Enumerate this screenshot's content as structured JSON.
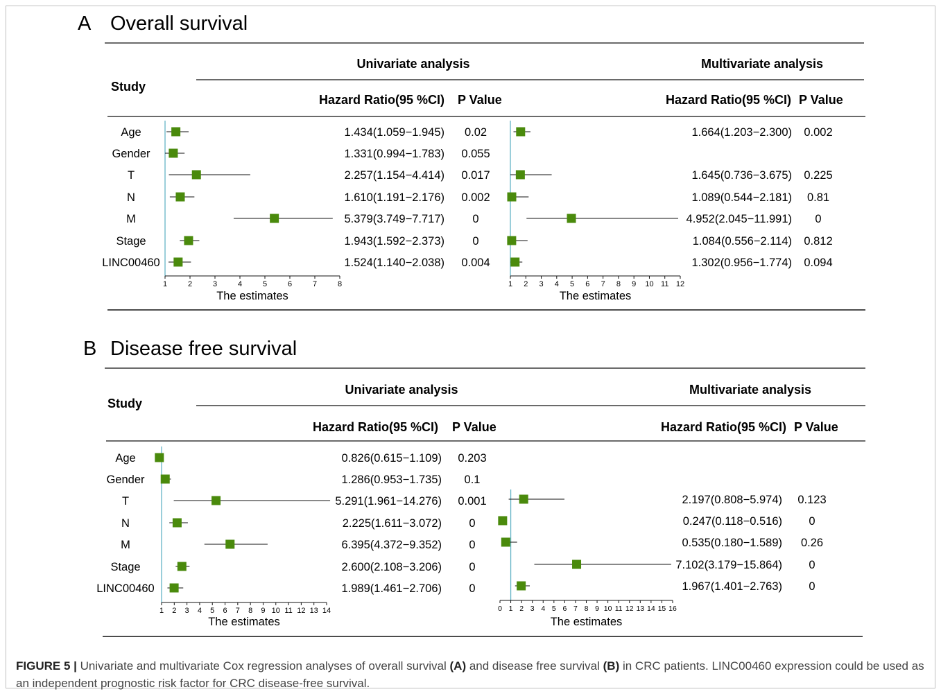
{
  "figure_caption": {
    "label": "FIGURE 5 |",
    "part1": " Univariate and multivariate Cox regression analyses of overall survival ",
    "ref_a": "(A)",
    "part2": " and disease free survival ",
    "ref_b": "(B)",
    "part3": " in CRC patients. LINC00460 expression could be used as an independent prognostic risk factor for CRC disease-free survival."
  },
  "colors": {
    "marker": "#4a8a0c",
    "reference_line": "#63b3c6",
    "text": "#111111"
  },
  "chart_data": [
    {
      "type": "forest",
      "panel_letter": "A",
      "title": "Overall survival",
      "study_header": "Study",
      "univariate": {
        "heading": "Univariate analysis",
        "hr_header": "Hazard Ratio(95 %CI)",
        "p_header": "P Value",
        "xlabel": "The estimates",
        "xlim": [
          1,
          8
        ],
        "ticks": [
          1,
          2,
          3,
          4,
          5,
          6,
          7,
          8
        ],
        "reference": 1,
        "rows": [
          {
            "label": "Age",
            "hr": 1.434,
            "lo": 1.059,
            "hi": 1.945,
            "text": "1.434(1.059−1.945)",
            "p": "0.02"
          },
          {
            "label": "Gender",
            "hr": 1.331,
            "lo": 0.994,
            "hi": 1.783,
            "text": "1.331(0.994−1.783)",
            "p": "0.055"
          },
          {
            "label": "T",
            "hr": 2.257,
            "lo": 1.154,
            "hi": 4.414,
            "text": "2.257(1.154−4.414)",
            "p": "0.017"
          },
          {
            "label": "N",
            "hr": 1.61,
            "lo": 1.191,
            "hi": 2.176,
            "text": "1.610(1.191−2.176)",
            "p": "0.002"
          },
          {
            "label": "M",
            "hr": 5.379,
            "lo": 3.749,
            "hi": 7.717,
            "text": "5.379(3.749−7.717)",
            "p": "0"
          },
          {
            "label": "Stage",
            "hr": 1.943,
            "lo": 1.592,
            "hi": 2.373,
            "text": "1.943(1.592−2.373)",
            "p": "0"
          },
          {
            "label": "LINC00460",
            "hr": 1.524,
            "lo": 1.14,
            "hi": 2.038,
            "text": "1.524(1.140−2.038)",
            "p": "0.004"
          }
        ]
      },
      "multivariate": {
        "heading": "Multivariate analysis",
        "hr_header": "Hazard Ratio(95 %CI)",
        "p_header": "P Value",
        "xlabel": "The estimates",
        "xlim": [
          1,
          12
        ],
        "ticks": [
          1,
          2,
          3,
          4,
          5,
          6,
          7,
          8,
          9,
          10,
          11,
          12
        ],
        "reference": 1,
        "rows": [
          {
            "label": "Age",
            "hr": 1.664,
            "lo": 1.203,
            "hi": 2.3,
            "text": "1.664(1.203−2.300)",
            "p": "0.002"
          },
          {
            "label": "Gender",
            "hr": null,
            "lo": null,
            "hi": null,
            "text": "",
            "p": ""
          },
          {
            "label": "T",
            "hr": 1.645,
            "lo": 0.736,
            "hi": 3.675,
            "text": "1.645(0.736−3.675)",
            "p": "0.225"
          },
          {
            "label": "N",
            "hr": 1.089,
            "lo": 0.544,
            "hi": 2.181,
            "text": "1.089(0.544−2.181)",
            "p": "0.81"
          },
          {
            "label": "M",
            "hr": 4.952,
            "lo": 2.045,
            "hi": 11.991,
            "text": "4.952(2.045−11.991)",
            "p": "0"
          },
          {
            "label": "Stage",
            "hr": 1.084,
            "lo": 0.556,
            "hi": 2.114,
            "text": "1.084(0.556−2.114)",
            "p": "0.812"
          },
          {
            "label": "LINC00460",
            "hr": 1.302,
            "lo": 0.956,
            "hi": 1.774,
            "text": "1.302(0.956−1.774)",
            "p": "0.094"
          }
        ]
      }
    },
    {
      "type": "forest",
      "panel_letter": "B",
      "title": "Disease free survival",
      "study_header": "Study",
      "univariate": {
        "heading": "Univariate analysis",
        "hr_header": "Hazard Ratio(95 %CI)",
        "p_header": "P Value",
        "xlabel": "The estimates",
        "xlim": [
          1,
          14
        ],
        "ticks": [
          1,
          2,
          3,
          4,
          5,
          6,
          7,
          8,
          9,
          10,
          11,
          12,
          13,
          14
        ],
        "reference": 1,
        "rows": [
          {
            "label": "Age",
            "hr": 0.826,
            "lo": 0.615,
            "hi": 1.109,
            "text": "0.826(0.615−1.109)",
            "p": "0.203"
          },
          {
            "label": "Gender",
            "hr": 1.286,
            "lo": 0.953,
            "hi": 1.735,
            "text": "1.286(0.953−1.735)",
            "p": "0.1"
          },
          {
            "label": "T",
            "hr": 5.291,
            "lo": 1.961,
            "hi": 14.276,
            "text": "5.291(1.961−14.276)",
            "p": "0.001"
          },
          {
            "label": "N",
            "hr": 2.225,
            "lo": 1.611,
            "hi": 3.072,
            "text": "2.225(1.611−3.072)",
            "p": "0"
          },
          {
            "label": "M",
            "hr": 6.395,
            "lo": 4.372,
            "hi": 9.352,
            "text": "6.395(4.372−9.352)",
            "p": "0"
          },
          {
            "label": "Stage",
            "hr": 2.6,
            "lo": 2.108,
            "hi": 3.206,
            "text": "2.600(2.108−3.206)",
            "p": "0"
          },
          {
            "label": "LINC00460",
            "hr": 1.989,
            "lo": 1.461,
            "hi": 2.706,
            "text": "1.989(1.461−2.706)",
            "p": "0"
          }
        ]
      },
      "multivariate": {
        "heading": "Multivariate analysis",
        "hr_header": "Hazard Ratio(95 %CI)",
        "p_header": "P Value",
        "xlabel": "The estimates",
        "xlim": [
          0,
          16
        ],
        "ticks": [
          0,
          1,
          2,
          3,
          4,
          5,
          6,
          7,
          8,
          9,
          10,
          11,
          12,
          13,
          14,
          15,
          16
        ],
        "reference": 1,
        "rows": [
          {
            "label": "T",
            "hr": 2.197,
            "lo": 0.808,
            "hi": 5.974,
            "text": "2.197(0.808−5.974)",
            "p": "0.123"
          },
          {
            "label": "N",
            "hr": 0.247,
            "lo": 0.118,
            "hi": 0.516,
            "text": "0.247(0.118−0.516)",
            "p": "0"
          },
          {
            "label": "M",
            "hr": 0.535,
            "lo": 0.18,
            "hi": 1.589,
            "text": "0.535(0.180−1.589)",
            "p": "0.26"
          },
          {
            "label": "Stage",
            "hr": 7.102,
            "lo": 3.179,
            "hi": 15.864,
            "text": "7.102(3.179−15.864)",
            "p": "0"
          },
          {
            "label": "LINC00460",
            "hr": 1.967,
            "lo": 1.401,
            "hi": 2.763,
            "text": "1.967(1.401−2.763)",
            "p": "0"
          }
        ]
      }
    }
  ]
}
